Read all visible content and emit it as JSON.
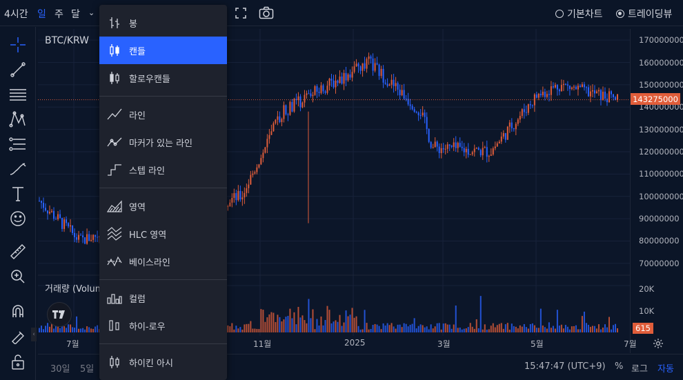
{
  "topbar": {
    "interval": "4시간",
    "periods": [
      "일",
      "주",
      "달"
    ],
    "chart_type_options": [
      "기본차트",
      "트레이딩뷰"
    ],
    "chart_type_selected": "트레이딩뷰"
  },
  "chart": {
    "symbol": "BTC/KRW",
    "volume_label": "거래량 (Volum",
    "current_price": "143275000",
    "volume_current": "615",
    "price_ticks": [
      "170000000",
      "160000000",
      "150000000",
      "140000000",
      "130000000",
      "120000000",
      "110000000",
      "100000000",
      "90000000",
      "80000000",
      "70000000"
    ],
    "volume_ticks": [
      "20K",
      "10K"
    ],
    "time_ticks": [
      "7월",
      "11월",
      "2025",
      "3월",
      "5월",
      "7월"
    ]
  },
  "bottombar": {
    "ranges": [
      "30일",
      "5일"
    ],
    "clock": "15:47:47 (UTC+9)",
    "percent": "%",
    "log": "로그",
    "auto": "자동"
  },
  "menu": {
    "items": [
      {
        "label": "봉",
        "icon": "bars-icon"
      },
      {
        "label": "캔들",
        "icon": "candles-icon",
        "selected": true
      },
      {
        "label": "할로우캔들",
        "icon": "hollow-candles-icon"
      },
      {
        "label": "라인",
        "icon": "line-icon"
      },
      {
        "label": "마커가 있는 라인",
        "icon": "line-with-markers-icon"
      },
      {
        "label": "스텝 라인",
        "icon": "step-line-icon"
      },
      {
        "label": "영역",
        "icon": "area-icon"
      },
      {
        "label": "HLC 영역",
        "icon": "hlc-area-icon"
      },
      {
        "label": "베이스라인",
        "icon": "baseline-icon"
      },
      {
        "label": "컬럼",
        "icon": "columns-icon"
      },
      {
        "label": "하이-로우",
        "icon": "high-low-icon"
      },
      {
        "label": "하이킨 아시",
        "icon": "heikin-ashi-icon"
      }
    ]
  },
  "colors": {
    "up": "#e05d3a",
    "down": "#2962ff",
    "accent": "#2962ff",
    "bg": "#0c1629"
  },
  "chart_data": {
    "type": "candlestick",
    "x": [
      "7월",
      "11월",
      "2025",
      "3월",
      "5월",
      "7월"
    ],
    "ylim": [
      65000000,
      175000000
    ],
    "approx_path": [
      [
        0,
        98000000
      ],
      [
        0.07,
        80000000
      ],
      [
        0.15,
        87000000
      ],
      [
        0.35,
        100000000
      ],
      [
        0.42,
        138000000
      ],
      [
        0.5,
        150000000
      ],
      [
        0.57,
        160000000
      ],
      [
        0.66,
        138000000
      ],
      [
        0.68,
        122000000
      ],
      [
        0.78,
        120000000
      ],
      [
        0.86,
        145000000
      ],
      [
        0.9,
        150000000
      ],
      [
        1.0,
        143275000
      ]
    ]
  }
}
